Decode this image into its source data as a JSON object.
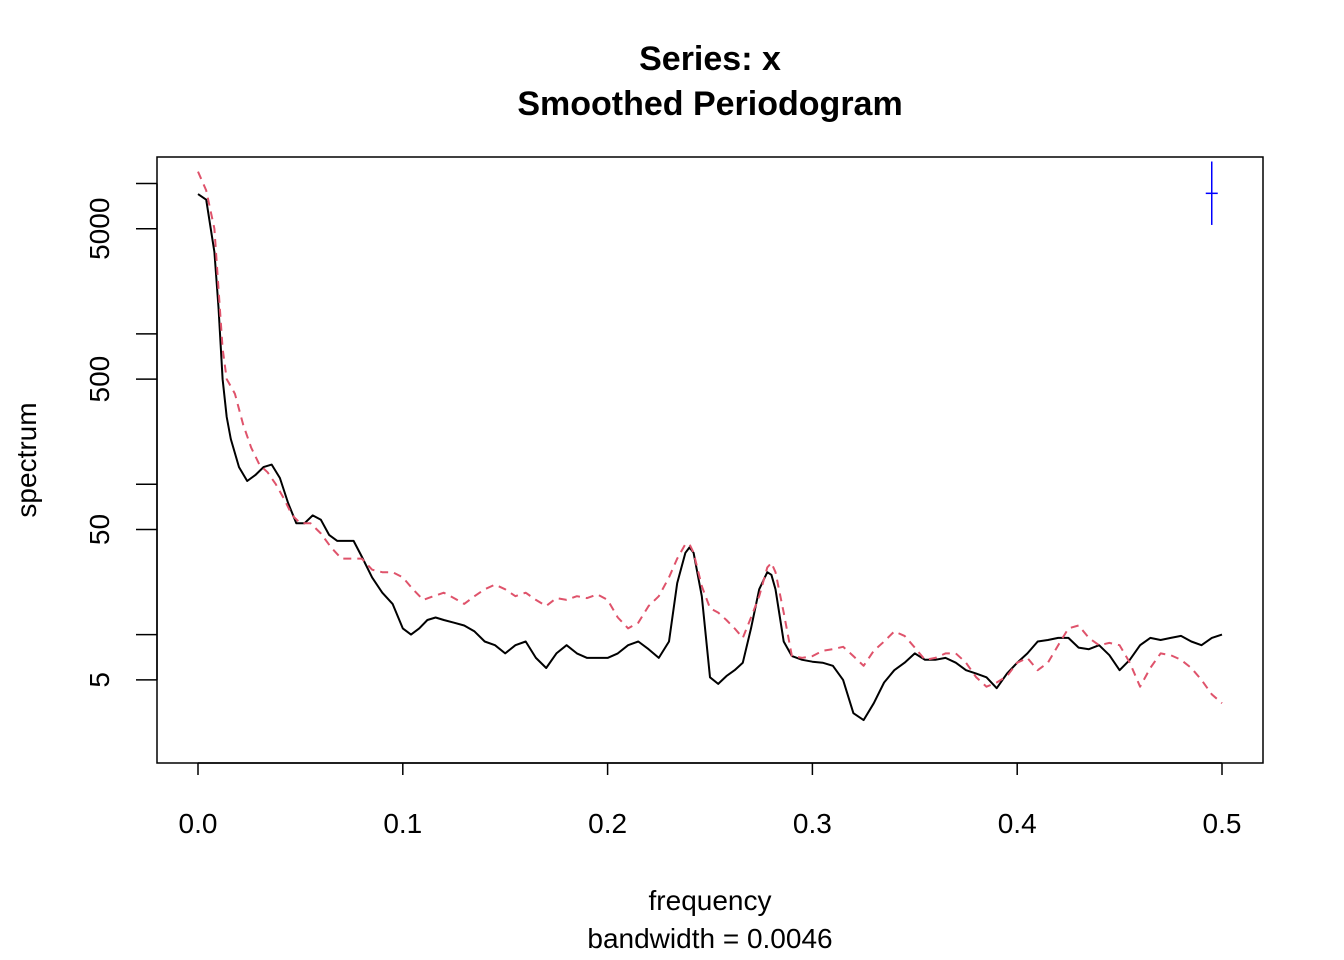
{
  "chart_data": {
    "type": "line",
    "title": "Series: x",
    "subtitle": "Smoothed Periodogram",
    "xlabel": "frequency",
    "sub_xlabel": "bandwidth = 0.0046",
    "ylabel": "spectrum",
    "xlim": [
      0,
      0.5
    ],
    "ylim": [
      1.4,
      15000
    ],
    "y_scale": "log",
    "x_ticks": [
      0.0,
      0.1,
      0.2,
      0.3,
      0.4,
      0.5
    ],
    "x_tick_labels": [
      "0.0",
      "0.1",
      "0.2",
      "0.3",
      "0.4",
      "0.5"
    ],
    "y_major_ticks": [
      5,
      50,
      500,
      5000
    ],
    "y_tick_labels": [
      "5",
      "50",
      "500",
      "5000"
    ],
    "y_minor_ticks": [
      10,
      100,
      1000,
      10000
    ],
    "series": [
      {
        "style": "solid",
        "color": "#000000",
        "x": [
          0.0,
          0.004,
          0.008,
          0.01,
          0.012,
          0.014,
          0.016,
          0.02,
          0.024,
          0.028,
          0.032,
          0.036,
          0.04,
          0.044,
          0.048,
          0.052,
          0.056,
          0.06,
          0.064,
          0.068,
          0.072,
          0.076,
          0.08,
          0.085,
          0.09,
          0.095,
          0.1,
          0.104,
          0.108,
          0.112,
          0.116,
          0.12,
          0.125,
          0.13,
          0.135,
          0.14,
          0.145,
          0.15,
          0.155,
          0.16,
          0.165,
          0.17,
          0.175,
          0.18,
          0.185,
          0.19,
          0.195,
          0.2,
          0.205,
          0.21,
          0.215,
          0.22,
          0.225,
          0.23,
          0.234,
          0.238,
          0.24,
          0.242,
          0.246,
          0.25,
          0.254,
          0.258,
          0.262,
          0.266,
          0.27,
          0.274,
          0.278,
          0.28,
          0.282,
          0.286,
          0.29,
          0.295,
          0.3,
          0.305,
          0.31,
          0.315,
          0.32,
          0.325,
          0.33,
          0.335,
          0.34,
          0.345,
          0.35,
          0.355,
          0.36,
          0.365,
          0.37,
          0.375,
          0.38,
          0.385,
          0.39,
          0.395,
          0.4,
          0.405,
          0.41,
          0.415,
          0.42,
          0.425,
          0.43,
          0.435,
          0.44,
          0.445,
          0.45,
          0.455,
          0.46,
          0.465,
          0.47,
          0.475,
          0.48,
          0.485,
          0.49,
          0.495,
          0.5
        ],
        "y": [
          8500,
          7800,
          3500,
          1500,
          500,
          280,
          200,
          130,
          105,
          115,
          130,
          135,
          110,
          75,
          55,
          55,
          62,
          58,
          46,
          42,
          42,
          42,
          33,
          24,
          19,
          16,
          11,
          10,
          11,
          12.5,
          13,
          12.5,
          12,
          11.5,
          10.5,
          9,
          8.5,
          7.5,
          8.5,
          9,
          7,
          6,
          7.5,
          8.5,
          7.5,
          7,
          7,
          7,
          7.5,
          8.5,
          9,
          8,
          7,
          9,
          22,
          35,
          38,
          35,
          18,
          5.2,
          4.7,
          5.3,
          5.8,
          6.5,
          11,
          20,
          26,
          25,
          20,
          9,
          7.2,
          6.8,
          6.6,
          6.5,
          6.2,
          5,
          3,
          2.7,
          3.5,
          4.8,
          5.8,
          6.5,
          7.5,
          6.8,
          6.8,
          7,
          6.5,
          5.8,
          5.5,
          5.2,
          4.4,
          5.5,
          6.5,
          7.5,
          9,
          9.2,
          9.5,
          9.5,
          8.2,
          8,
          8.5,
          7.3,
          5.8,
          6.8,
          8.5,
          9.5,
          9.2,
          9.5,
          9.8,
          9,
          8.5,
          9.5,
          10
        ]
      },
      {
        "style": "dashed",
        "color": "#df536b",
        "x": [
          0.0,
          0.004,
          0.008,
          0.01,
          0.012,
          0.014,
          0.018,
          0.022,
          0.026,
          0.03,
          0.034,
          0.038,
          0.042,
          0.046,
          0.05,
          0.055,
          0.06,
          0.065,
          0.07,
          0.075,
          0.08,
          0.085,
          0.09,
          0.095,
          0.1,
          0.105,
          0.11,
          0.115,
          0.12,
          0.125,
          0.13,
          0.135,
          0.14,
          0.145,
          0.15,
          0.155,
          0.16,
          0.165,
          0.17,
          0.175,
          0.18,
          0.185,
          0.19,
          0.195,
          0.2,
          0.205,
          0.21,
          0.215,
          0.22,
          0.225,
          0.23,
          0.234,
          0.238,
          0.24,
          0.242,
          0.246,
          0.25,
          0.254,
          0.258,
          0.262,
          0.266,
          0.27,
          0.274,
          0.278,
          0.28,
          0.282,
          0.286,
          0.29,
          0.295,
          0.3,
          0.305,
          0.31,
          0.315,
          0.32,
          0.325,
          0.33,
          0.335,
          0.34,
          0.345,
          0.35,
          0.355,
          0.36,
          0.365,
          0.37,
          0.375,
          0.38,
          0.385,
          0.39,
          0.395,
          0.4,
          0.405,
          0.41,
          0.415,
          0.42,
          0.425,
          0.43,
          0.435,
          0.44,
          0.445,
          0.45,
          0.455,
          0.46,
          0.465,
          0.47,
          0.475,
          0.48,
          0.485,
          0.49,
          0.495,
          0.5
        ],
        "y": [
          12000,
          9000,
          5000,
          2000,
          800,
          500,
          400,
          250,
          175,
          135,
          120,
          100,
          80,
          62,
          55,
          55,
          47,
          38,
          32,
          32,
          32,
          27,
          26,
          26,
          24,
          20,
          17,
          18,
          19,
          17.5,
          16,
          18,
          20,
          21.5,
          20,
          18,
          19,
          17,
          15.5,
          17.5,
          17,
          18,
          17.5,
          18.5,
          17,
          13,
          11,
          12,
          15.5,
          18,
          24,
          32,
          40,
          40,
          35,
          21,
          15,
          14,
          12.5,
          11,
          9.5,
          13,
          18,
          28,
          30,
          26,
          14,
          7.2,
          7,
          7.2,
          7.8,
          8,
          8.3,
          7.2,
          6.2,
          7.8,
          9,
          10.5,
          9.8,
          8.2,
          6.8,
          7,
          7.5,
          7.5,
          6.5,
          5.2,
          4.5,
          4.8,
          5.3,
          6.5,
          7,
          5.8,
          6.5,
          8.5,
          11,
          11.5,
          9.5,
          8.5,
          8.8,
          8.5,
          6.5,
          4.5,
          6,
          7.5,
          7.3,
          6.8,
          6,
          5,
          4,
          3.5
        ]
      }
    ],
    "ci_bar": {
      "x": 0.495,
      "center": 8600,
      "upper": 14000,
      "lower": 5300,
      "color": "#0000ff"
    }
  }
}
